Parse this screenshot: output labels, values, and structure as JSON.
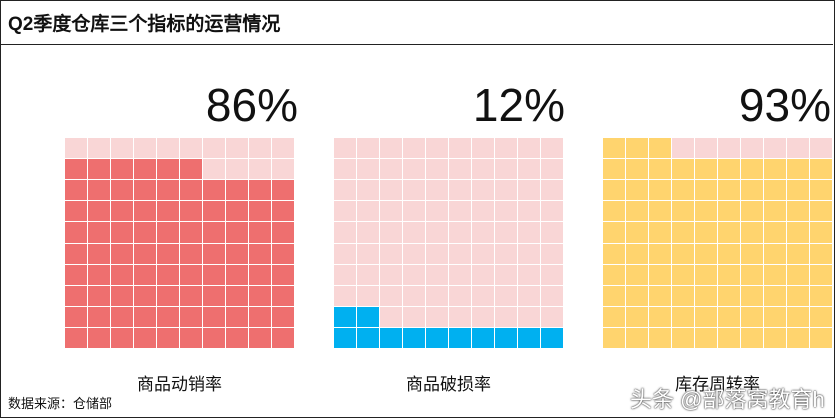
{
  "title": "Q2季度仓库三个指标的运营情况",
  "chart_data": {
    "type": "waffle",
    "title": "Q2季度仓库三个指标的运营情况",
    "grid": "10x10",
    "series": [
      {
        "name": "商品动销率",
        "value_label": "86%",
        "value": 86,
        "filled_color": "#ee6f6f",
        "empty_color": "#f9d6d6"
      },
      {
        "name": "商品破损率",
        "value_label": "12%",
        "value": 12,
        "filled_color": "#00b0f0",
        "empty_color": "#f9d6d6"
      },
      {
        "name": "库存周转率",
        "value_label": "93%",
        "value": 93,
        "filled_color": "#ffd46e",
        "empty_color": "#f9d6d6"
      }
    ]
  },
  "source": "数据来源：仓储部",
  "watermark": "头条 @部落窝教育h"
}
